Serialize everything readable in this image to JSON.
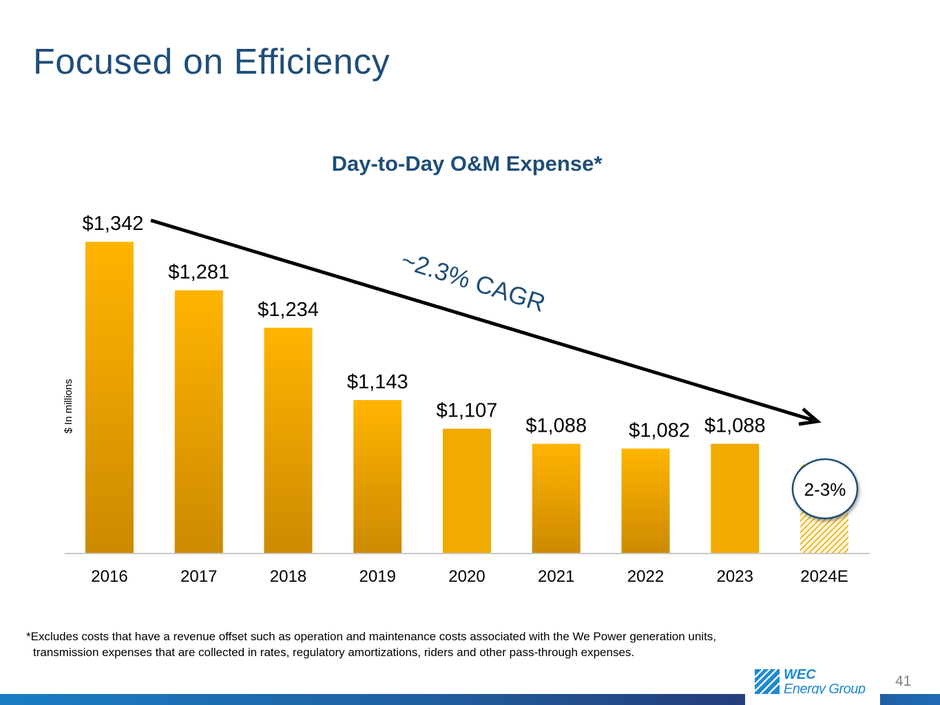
{
  "page": {
    "title": "Focused on Efficiency",
    "footnote_line1": "*Excludes costs that have a revenue offset such as operation and maintenance costs associated with the We Power generation units,",
    "footnote_line2": "transmission expenses that are collected in rates, regulatory amortizations, riders and other pass-through expenses.",
    "page_number": "41",
    "logo": {
      "line1": "WEC",
      "line2": "Energy Group"
    }
  },
  "chart_data": {
    "type": "bar",
    "title": "Day-to-Day O&M Expense*",
    "ylabel": "$ In millions",
    "xlabel": "",
    "categories": [
      "2016",
      "2017",
      "2018",
      "2019",
      "2020",
      "2021",
      "2022",
      "2023",
      "2024E"
    ],
    "values": [
      1342,
      1281,
      1234,
      1143,
      1107,
      1088,
      1082,
      1088,
      1062
    ],
    "data_labels": [
      "$1,342",
      "$1,281",
      "$1,234",
      "$1,143",
      "$1,107",
      "$1,088",
      "$1,082",
      "$1,088",
      ""
    ],
    "ylim": [
      950,
      1350
    ],
    "grid": false,
    "estimate_category": "2024E",
    "estimate_label": "2-3%",
    "trend_annotation": "~2.3% CAGR",
    "colors": {
      "bar_top": "#ffb400",
      "bar_bottom": "#cc8a00",
      "bar_flat": "#f0aa00",
      "estimate_hatch": "#e8a900",
      "title": "#1f4e79",
      "arrow": "#000000"
    }
  }
}
